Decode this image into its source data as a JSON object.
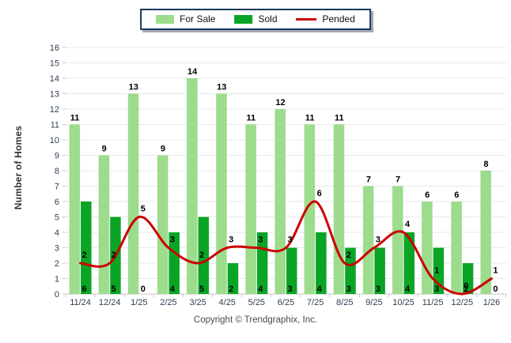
{
  "footer": {
    "copyright": "Copyright © Trendgraphix, Inc."
  },
  "colors": {
    "for_sale": "#9CDC8C",
    "sold": "#0AA426",
    "pended": "#CC0000",
    "legend_border": "#17375E",
    "grid": "#E9E9E9",
    "axis": "#C6C6C6",
    "tick_text": "#2E4057",
    "value_label": "#000000"
  },
  "chart_data": {
    "type": "bar",
    "categories": [
      "11/24",
      "12/24",
      "1/25",
      "2/25",
      "3/25",
      "4/25",
      "5/25",
      "6/25",
      "7/25",
      "8/25",
      "9/25",
      "10/25",
      "11/25",
      "12/25",
      "1/26"
    ],
    "series": [
      {
        "name": "For Sale",
        "kind": "bar",
        "color": "#9CDC8C",
        "values": [
          11,
          9,
          13,
          9,
          14,
          13,
          11,
          12,
          11,
          11,
          7,
          7,
          6,
          6,
          8
        ]
      },
      {
        "name": "Sold",
        "kind": "bar",
        "color": "#0AA426",
        "values": [
          6,
          5,
          0,
          4,
          5,
          2,
          4,
          3,
          4,
          3,
          3,
          4,
          3,
          2,
          0
        ]
      },
      {
        "name": "Pended",
        "kind": "line",
        "color": "#CC0000",
        "values": [
          2,
          2,
          5,
          3,
          2,
          3,
          3,
          3,
          6,
          2,
          3,
          4,
          1,
          0,
          1
        ]
      }
    ],
    "title": "",
    "xlabel": "",
    "ylabel": "Number of Homes",
    "ylim": [
      0,
      16
    ],
    "ytick_step": 1,
    "grid": true,
    "legend_position": "top-center",
    "value_labels": true
  }
}
